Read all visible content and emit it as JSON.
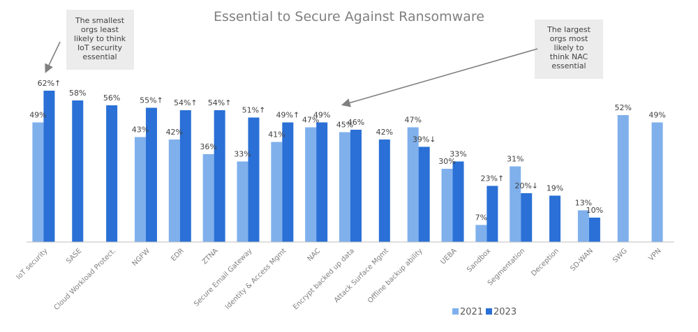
{
  "chart_data": {
    "type": "bar",
    "title": "Essential to Secure Against Ransomware",
    "xlabel": "",
    "ylabel": "",
    "ylim": [
      0,
      70
    ],
    "grid": false,
    "legend_position": "bottom-right",
    "categories": [
      "IoT security",
      "SASE",
      "Cloud Workload Protect.",
      "NGFW",
      "EDR",
      "ZTNA",
      "Secure Email Gateway",
      "Identity & Access Mgmt",
      "NAC",
      "Encrypt backed up data",
      "Attack Surface Mgmt",
      "Offline backup ability",
      "UEBA",
      "Sandbox",
      "Segmentation",
      "Deception",
      "SD-WAN",
      "SWG",
      "VPN"
    ],
    "series": [
      {
        "name": "2021",
        "color": "#7fb0ec",
        "values": [
          49,
          null,
          null,
          43,
          42,
          36,
          33,
          41,
          47,
          45,
          null,
          47,
          30,
          7,
          31,
          null,
          13,
          52,
          49
        ],
        "labels": [
          "49%",
          "",
          "",
          "43%",
          "42%",
          "36%",
          "33%",
          "41%",
          "47%",
          "45%",
          "",
          "47%",
          "30%",
          "7%",
          "31%",
          "",
          "13%",
          "52%",
          "49%"
        ]
      },
      {
        "name": "2023",
        "color": "#2a70d6",
        "values": [
          62,
          58,
          56,
          55,
          54,
          54,
          51,
          49,
          49,
          46,
          42,
          39,
          33,
          23,
          20,
          19,
          10,
          null,
          null
        ],
        "labels": [
          "62%↑",
          "58%",
          "56%",
          "55%↑",
          "54%↑",
          "54%↑",
          "51%↑",
          "49%↑",
          "49%",
          "46%",
          "42%",
          "39%↓",
          "33%",
          "23%↑",
          "20%↓",
          "19%",
          "10%",
          "",
          ""
        ]
      }
    ],
    "annotations": [
      {
        "text": [
          "The smallest",
          "orgs least",
          "likely to think",
          "IoT security",
          "essential"
        ],
        "target": "IoT security"
      },
      {
        "text": [
          "The largest",
          "orgs most",
          "likely to",
          "think NAC",
          "essential"
        ],
        "target": "NAC"
      }
    ]
  }
}
